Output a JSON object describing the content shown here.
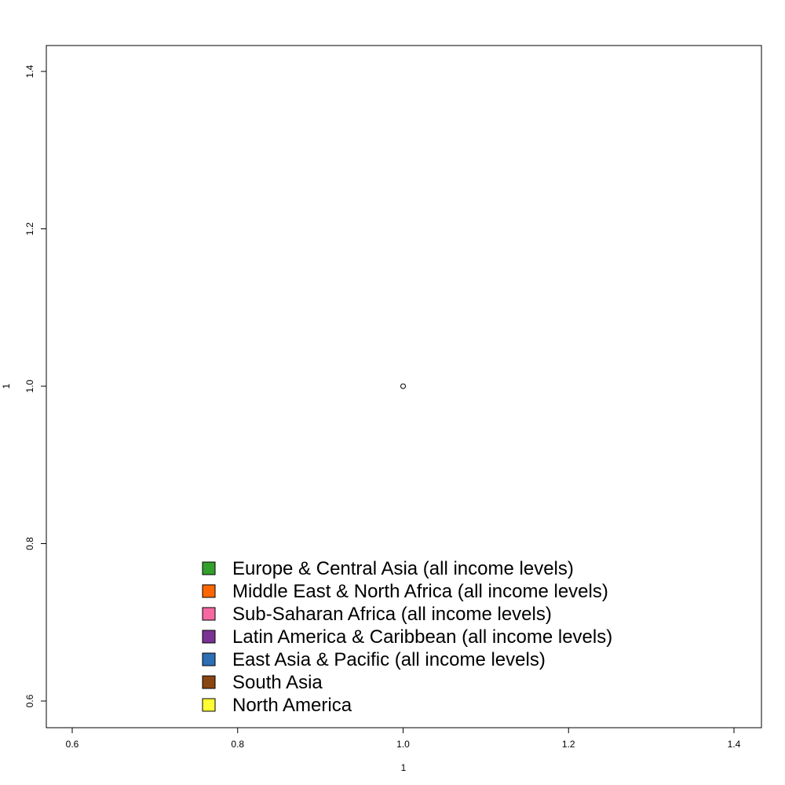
{
  "chart_data": {
    "type": "scatter",
    "title": "",
    "xlabel": "1",
    "ylabel": "1",
    "xlim": [
      0.6,
      1.4
    ],
    "ylim": [
      0.6,
      1.4
    ],
    "x_ticks": [
      "0.6",
      "0.8",
      "1.0",
      "1.2",
      "1.4"
    ],
    "y_ticks": [
      "0.6",
      "0.8",
      "1.0",
      "1.2",
      "1.4"
    ],
    "points": [
      {
        "x": 1.0,
        "y": 1.0
      }
    ],
    "grid": false,
    "legend_position": "bottom",
    "legend": [
      {
        "label": "Europe & Central Asia (all income levels)",
        "color": "#33a02c"
      },
      {
        "label": "Middle East & North Africa (all income levels)",
        "color": "#ff6600"
      },
      {
        "label": "Sub-Saharan Africa (all income levels)",
        "color": "#f768a1"
      },
      {
        "label": "Latin America & Caribbean (all income levels)",
        "color": "#7b3294"
      },
      {
        "label": "East Asia & Pacific (all income levels)",
        "color": "#2c6fb5"
      },
      {
        "label": "South Asia",
        "color": "#8b4513"
      },
      {
        "label": "North America",
        "color": "#ffff33"
      }
    ]
  }
}
